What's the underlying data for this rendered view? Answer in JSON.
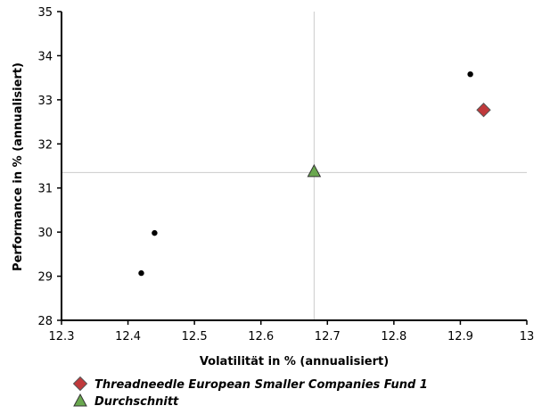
{
  "chart_data": {
    "type": "scatter",
    "xlabel": "Volatilität in % (annualisiert)",
    "ylabel": "Performance in % (annualisiert)",
    "xlim": [
      12.3,
      13
    ],
    "ylim": [
      28,
      35
    ],
    "x_ticks": [
      "12.3",
      "12.4",
      "12.5",
      "12.6",
      "12.7",
      "12.8",
      "12.9",
      "13"
    ],
    "y_ticks": [
      "28",
      "29",
      "30",
      "31",
      "32",
      "33",
      "34",
      "35"
    ],
    "grid": false,
    "reference_lines": {
      "x": 12.68,
      "y": 31.35
    },
    "series": [
      {
        "name": "Threadneedle European Smaller Companies Fund 1",
        "marker": "diamond",
        "color": "#c0393b",
        "points": [
          {
            "x": 12.935,
            "y": 32.77
          }
        ]
      },
      {
        "name": "Durchschnitt",
        "marker": "triangle",
        "color": "#6aa84f",
        "points": [
          {
            "x": 12.68,
            "y": 31.38
          }
        ]
      },
      {
        "marker": "dot",
        "color": "#000000",
        "points": [
          {
            "x": 12.44,
            "y": 29.98
          },
          {
            "x": 12.42,
            "y": 29.07
          },
          {
            "x": 12.915,
            "y": 33.58
          }
        ]
      }
    ],
    "legend": {
      "placement": "bottom-left",
      "items": [
        {
          "label": "Threadneedle European Smaller Companies Fund 1",
          "marker": "diamond",
          "color": "#c0393b"
        },
        {
          "label": "Durchschnitt",
          "marker": "triangle",
          "color": "#6aa84f"
        }
      ]
    }
  }
}
